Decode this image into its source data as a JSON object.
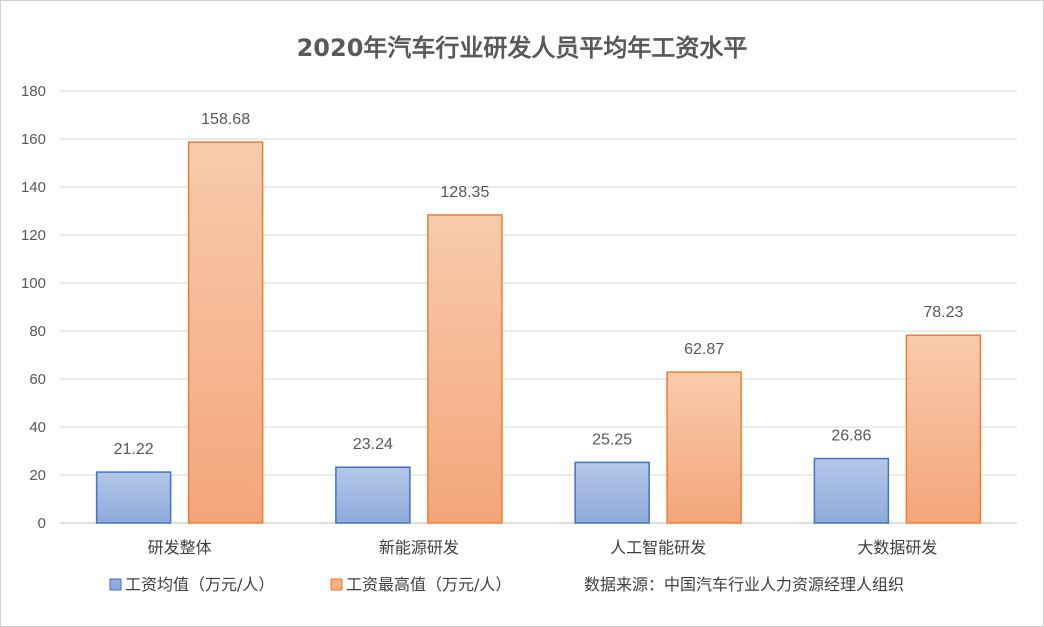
{
  "chart_data": {
    "type": "bar",
    "title": "2020年汽车行业研发人员平均年工资水平",
    "categories": [
      "研发整体",
      "新能源研发",
      "人工智能研发",
      "大数据研发"
    ],
    "series": [
      {
        "name": "工资均值（万元/人）",
        "values": [
          21.22,
          23.24,
          25.25,
          26.86
        ],
        "color": "#8faadc",
        "stroke": "#4472c4"
      },
      {
        "name": "工资最高值（万元/人）",
        "values": [
          158.68,
          128.35,
          62.87,
          78.23
        ],
        "color": "#f4b183",
        "stroke": "#ed7d31"
      }
    ],
    "ylim": [
      0,
      180
    ],
    "yticks": [
      0,
      20,
      40,
      60,
      80,
      100,
      120,
      140,
      160,
      180
    ],
    "grid": true,
    "legend_position": "bottom",
    "source_note": "数据来源：中国汽车行业人力资源经理人组织"
  }
}
